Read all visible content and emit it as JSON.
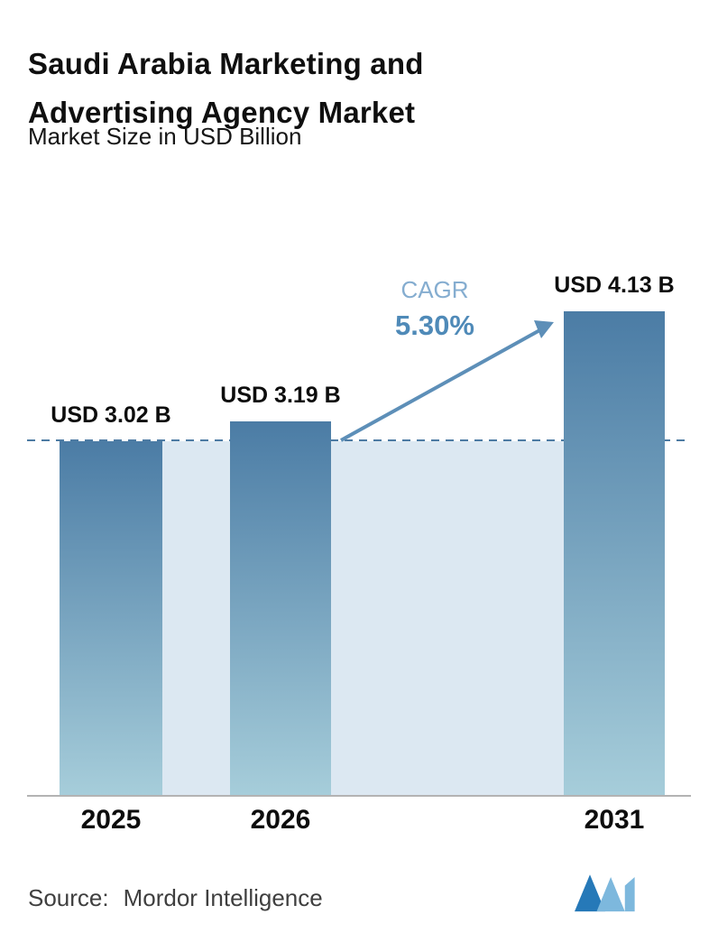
{
  "header": {
    "title_line1": "Saudi Arabia Marketing and",
    "title_line2": "Advertising Agency Market",
    "subtitle": "Market Size in USD Billion"
  },
  "chart_data": {
    "type": "bar",
    "title": "Saudi Arabia Marketing and Advertising Agency Market",
    "subtitle": "Market Size in USD Billion",
    "unit": "USD Billion",
    "categories": [
      "2025",
      "2026",
      "2031"
    ],
    "values": [
      3.02,
      3.19,
      4.13
    ],
    "value_labels": [
      "USD 3.02 B",
      "USD 3.19 B",
      "USD 4.13 B"
    ],
    "cagr": {
      "label": "CAGR",
      "value": "5.30%"
    },
    "ylim": [
      0,
      4.62
    ],
    "baseline_value": 3.02,
    "grid": false,
    "legend": false
  },
  "footer": {
    "source_label": "Source:",
    "source_value": "Mordor Intelligence"
  },
  "colors": {
    "bar_top": "#4b7ca5",
    "bar_bottom": "#a6cdda",
    "band": "#dce8f2",
    "dashed": "#4d7ba3",
    "cagr_label": "#85add0",
    "cagr_value": "#4f8ab8",
    "arrow": "#5d8fb8",
    "axis": "#b3b3b3",
    "logo_dark": "#2679b8",
    "logo_light": "#7db8dd"
  }
}
